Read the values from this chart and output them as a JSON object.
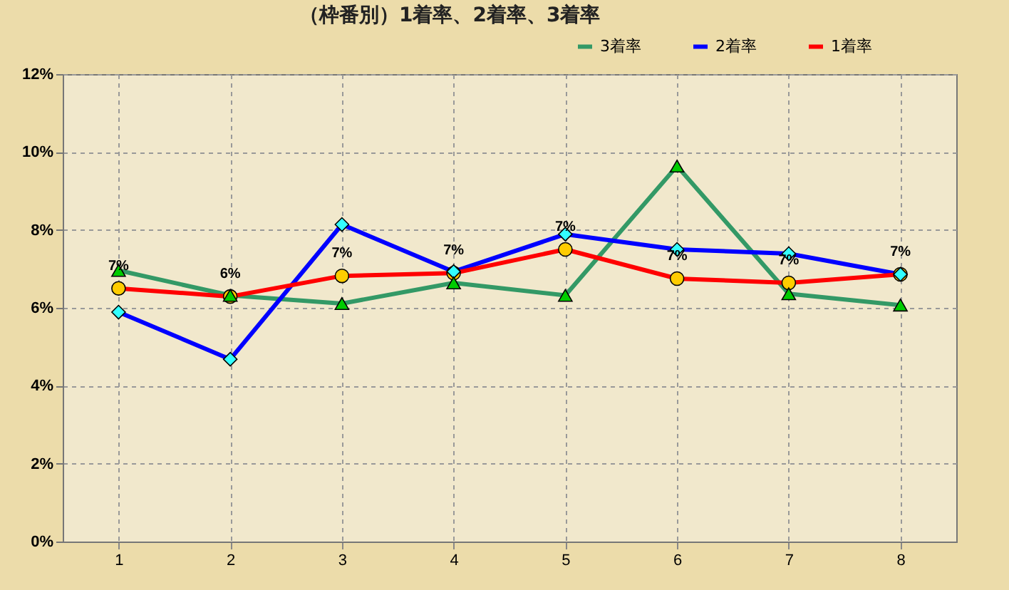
{
  "chart_data": {
    "type": "line",
    "title": "（枠番別）1着率、2着率、3着率",
    "categories": [
      "1",
      "2",
      "3",
      "4",
      "5",
      "6",
      "7",
      "8"
    ],
    "series": [
      {
        "name": "3着率",
        "color": "#339966",
        "marker": "triangle",
        "values": [
          6.96,
          6.32,
          6.11,
          6.64,
          6.32,
          9.64,
          6.36,
          6.07
        ]
      },
      {
        "name": "2着率",
        "color": "#0000ff",
        "marker": "diamond",
        "values": [
          5.89,
          4.68,
          8.14,
          6.93,
          7.89,
          7.5,
          7.39,
          6.86
        ]
      },
      {
        "name": "1着率",
        "color": "#ff0000",
        "marker": "circle",
        "values": [
          6.5,
          6.29,
          6.82,
          6.89,
          7.5,
          6.75,
          6.64,
          6.86
        ],
        "value_labels": [
          "7%",
          "6%",
          "7%",
          "7%",
          "7%",
          "7%",
          "7%",
          "7%"
        ]
      }
    ],
    "ylim": [
      0,
      12
    ],
    "yticks": [
      {
        "value": 0,
        "label": "0%"
      },
      {
        "value": 2,
        "label": "2%"
      },
      {
        "value": 4,
        "label": "4%"
      },
      {
        "value": 6,
        "label": "6%"
      },
      {
        "value": 8,
        "label": "8%"
      },
      {
        "value": 10,
        "label": "10%"
      },
      {
        "value": 12,
        "label": "12%"
      }
    ],
    "grid": true,
    "legend": "top right"
  }
}
